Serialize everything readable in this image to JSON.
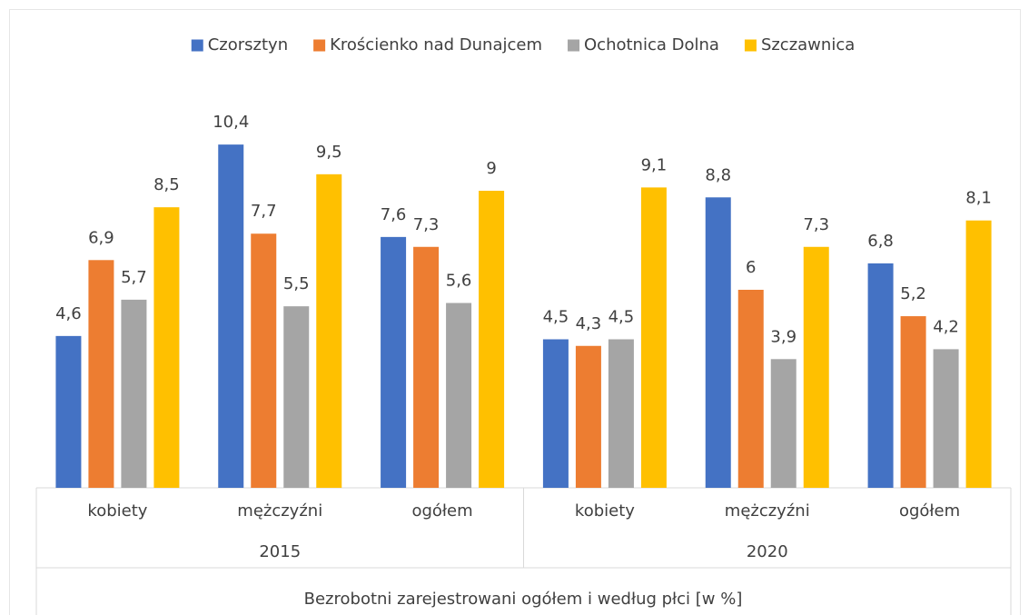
{
  "chart_data": {
    "type": "bar",
    "x_label": "Bezrobotni zarejestrowani ogółem i według płci [w %]",
    "categories": [
      "kobiety",
      "mężczyźni",
      "ogółem",
      "kobiety",
      "mężczyźni",
      "ogółem"
    ],
    "groups": [
      "2015",
      "2020"
    ],
    "ylim": [
      0,
      12
    ],
    "legend": "top",
    "series": [
      {
        "name": "Czorsztyn",
        "color": "#4472c4",
        "values": [
          4.6,
          10.4,
          7.6,
          4.5,
          8.8,
          6.8
        ],
        "value_labels": [
          "4,6",
          "10,4",
          "7,6",
          "4,5",
          "8,8",
          "6,8"
        ]
      },
      {
        "name": "Krościenko nad Dunajcem",
        "color": "#ed7d31",
        "values": [
          6.9,
          7.7,
          7.3,
          4.3,
          6,
          5.2
        ],
        "value_labels": [
          "6,9",
          "7,7",
          "7,3",
          "4,3",
          "6",
          "5,2"
        ]
      },
      {
        "name": "Ochotnica Dolna",
        "color": "#a5a5a5",
        "values": [
          5.7,
          5.5,
          5.6,
          4.5,
          3.9,
          4.2
        ],
        "value_labels": [
          "5,7",
          "5,5",
          "5,6",
          "4,5",
          "3,9",
          "4,2"
        ]
      },
      {
        "name": "Szczawnica",
        "color": "#ffc000",
        "values": [
          8.5,
          9.5,
          9,
          9.1,
          7.3,
          8.1
        ],
        "value_labels": [
          "8,5",
          "9,5",
          "9",
          "9,1",
          "7,3",
          "8,1"
        ]
      }
    ]
  }
}
